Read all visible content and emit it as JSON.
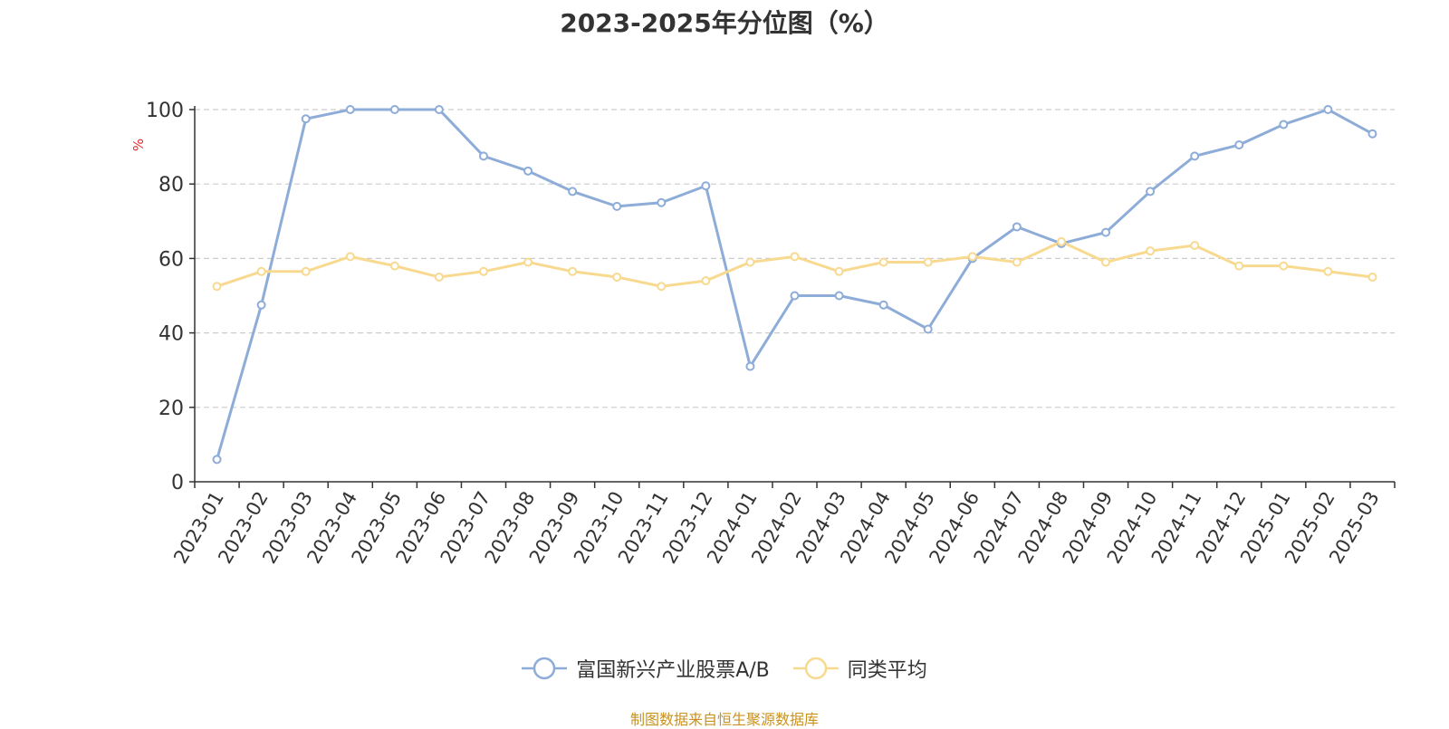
{
  "chart_data": {
    "type": "line",
    "title": "2023-2025年分位图（%）",
    "ylabel": "%",
    "xlabel": "",
    "ylim": [
      0,
      100
    ],
    "yticks": [
      0,
      20,
      40,
      60,
      80,
      100
    ],
    "grid": true,
    "legend_position": "bottom",
    "categories": [
      "2023-01",
      "2023-02",
      "2023-03",
      "2023-04",
      "2023-05",
      "2023-06",
      "2023-07",
      "2023-08",
      "2023-09",
      "2023-10",
      "2023-11",
      "2023-12",
      "2024-01",
      "2024-02",
      "2024-03",
      "2024-04",
      "2024-05",
      "2024-06",
      "2024-07",
      "2024-08",
      "2024-09",
      "2024-10",
      "2024-11",
      "2024-12",
      "2025-01",
      "2025-02",
      "2025-03"
    ],
    "series": [
      {
        "name": "富国新兴产业股票A/B",
        "color": "#8eacd8",
        "values": [
          6,
          47.5,
          97.5,
          100,
          100,
          100,
          87.5,
          83.5,
          78,
          74,
          75,
          79.5,
          31,
          50,
          50,
          47.5,
          41,
          60,
          68.5,
          64,
          67,
          78,
          87.5,
          90.5,
          96,
          100,
          93.5
        ]
      },
      {
        "name": "同类平均",
        "color": "#f8d990",
        "values": [
          52.5,
          56.5,
          56.5,
          60.5,
          58,
          55,
          56.5,
          59,
          56.5,
          55,
          52.5,
          54,
          59,
          60.5,
          56.5,
          59,
          59,
          60.5,
          59,
          64.5,
          59,
          62,
          63.5,
          58,
          58,
          56.5,
          55
        ]
      }
    ]
  },
  "source_note": "制图数据来自恒生聚源数据库"
}
